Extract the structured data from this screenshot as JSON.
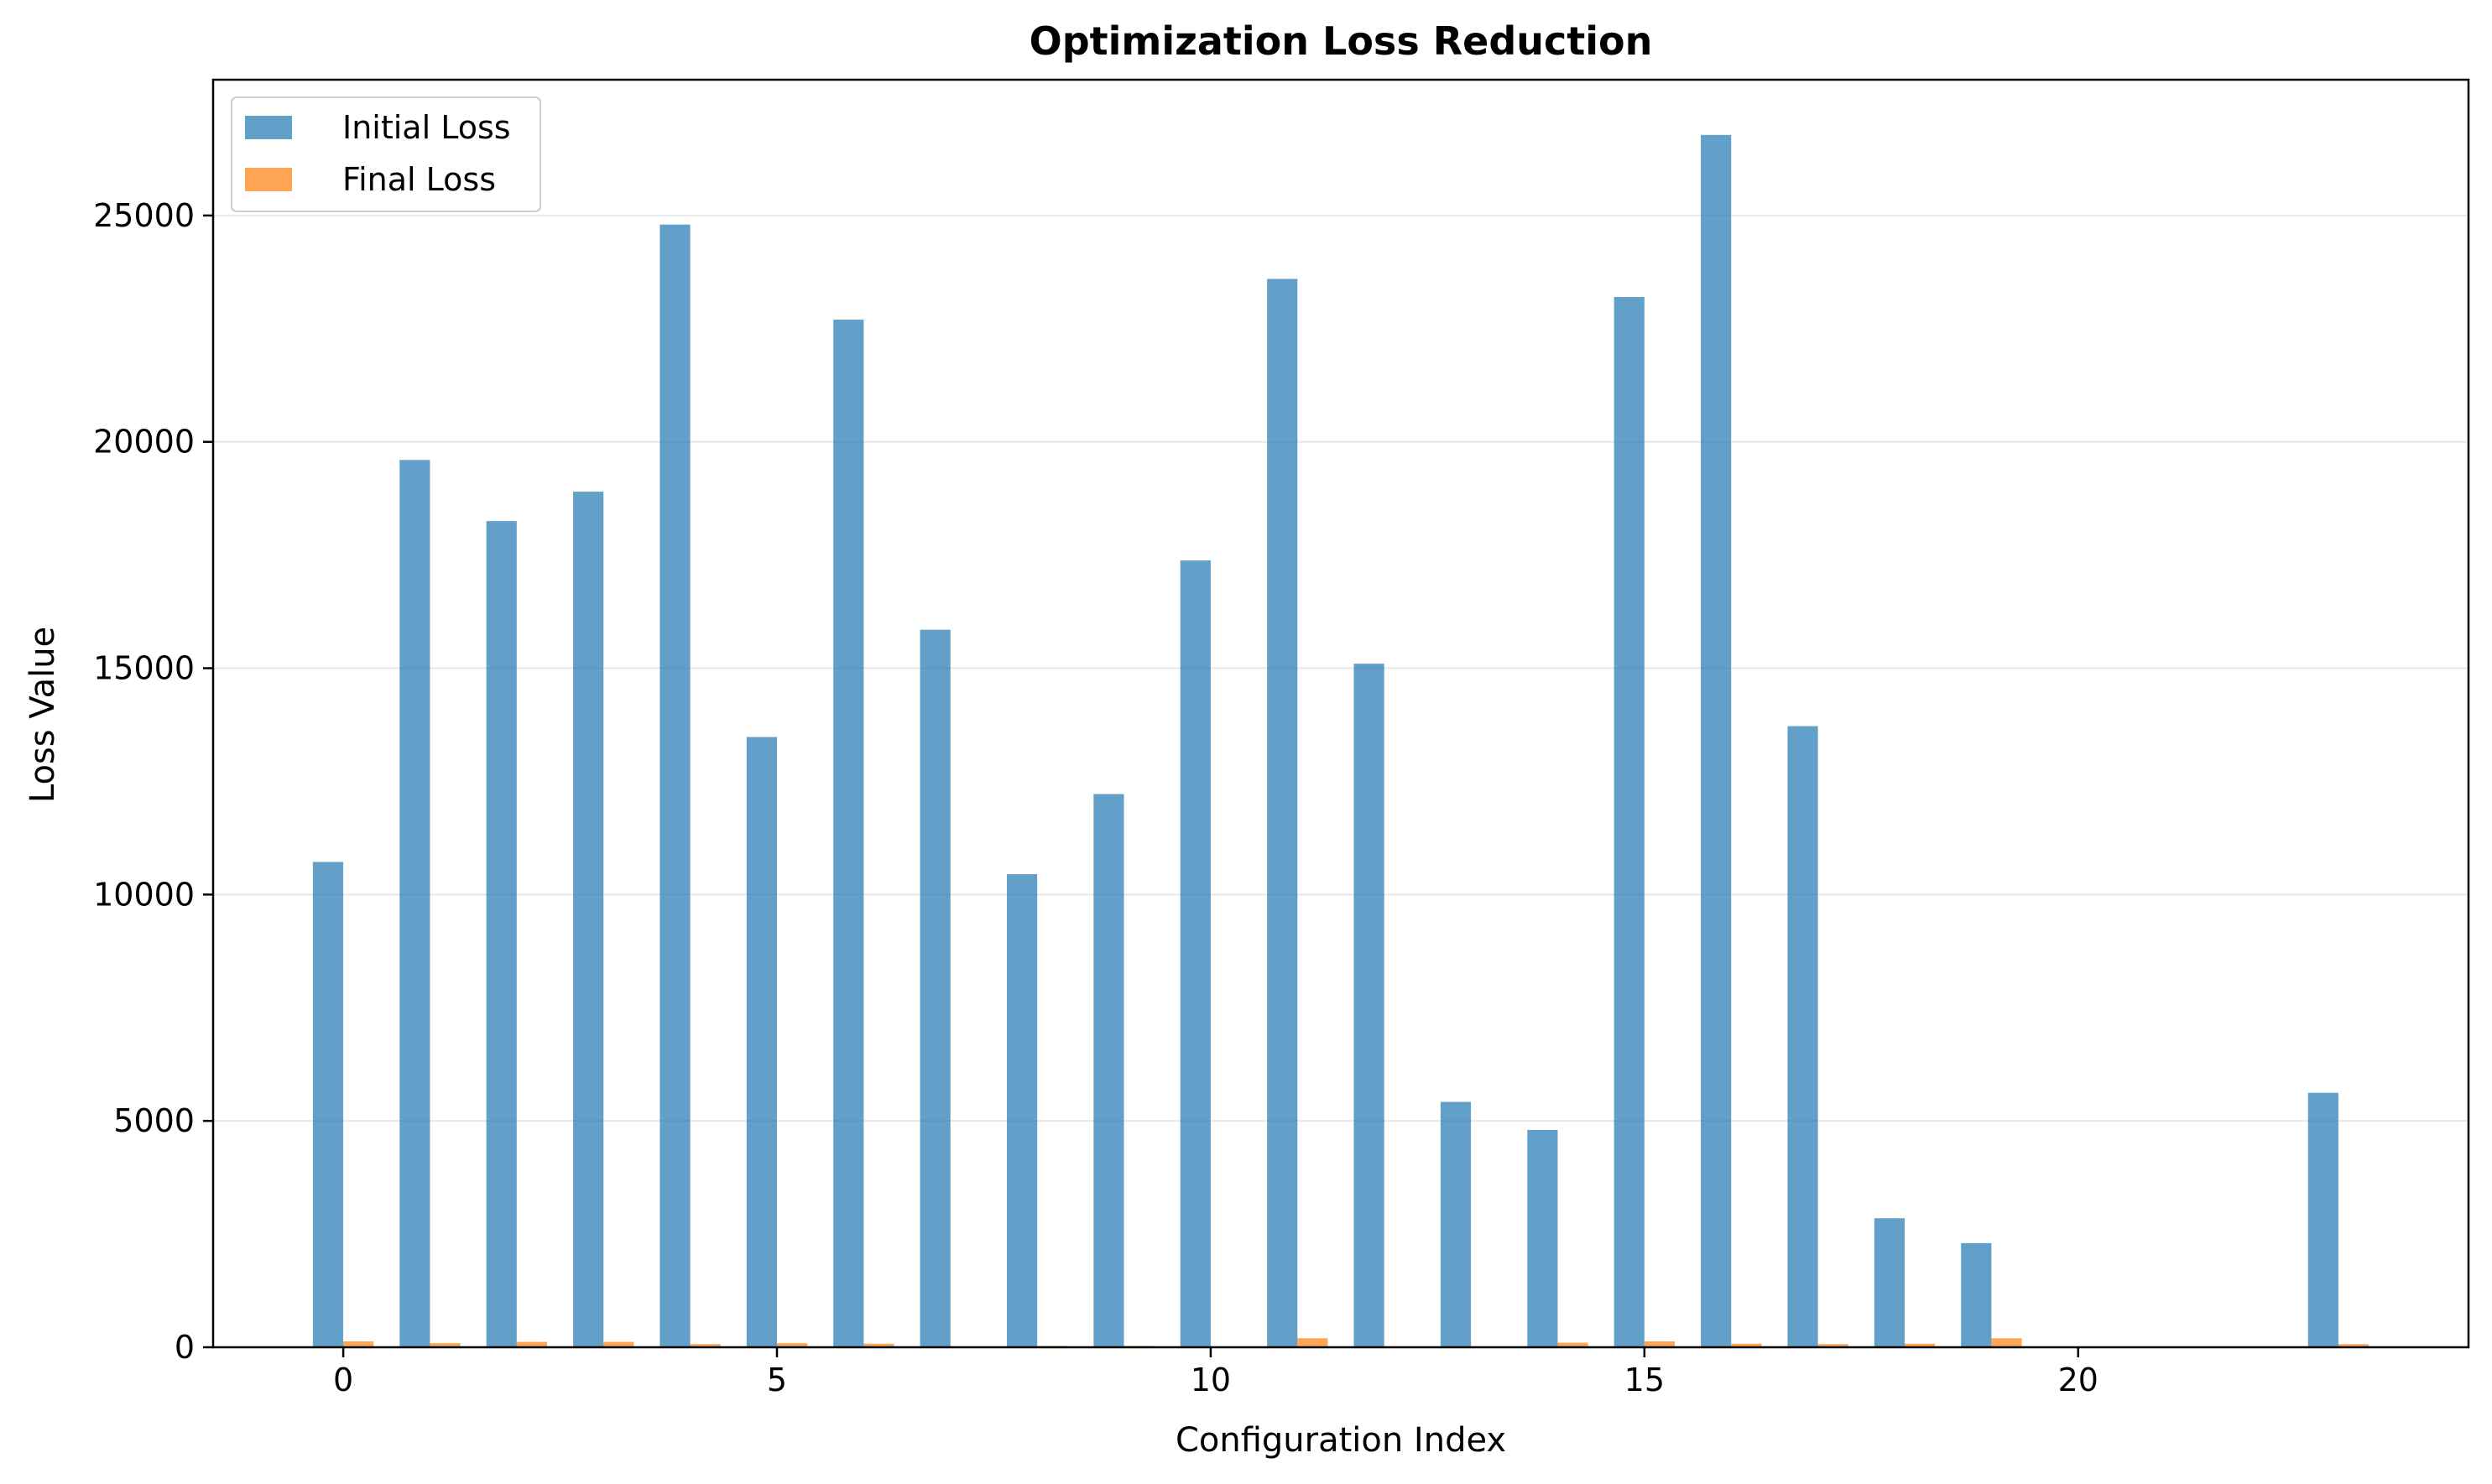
{
  "chart_data": {
    "type": "bar",
    "title": "Optimization Loss Reduction",
    "xlabel": "Configuration Index",
    "ylabel": "Loss Value",
    "x": [
      0,
      1,
      2,
      3,
      4,
      5,
      6,
      7,
      8,
      9,
      10,
      11,
      12,
      13,
      14,
      15,
      16,
      17,
      18,
      19,
      20,
      21,
      22,
      23
    ],
    "series": [
      {
        "name": "Initial Loss",
        "color": "#1f77b4",
        "values": [
          10720,
          19600,
          18250,
          18900,
          24800,
          13480,
          22700,
          15850,
          10450,
          12220,
          17380,
          23600,
          15100,
          5420,
          4800,
          23200,
          26780,
          13720,
          2850,
          2300,
          0,
          0,
          0,
          5620
        ]
      },
      {
        "name": "Final Loss",
        "color": "#ff7f0e",
        "values": [
          130,
          90,
          120,
          120,
          70,
          90,
          80,
          20,
          30,
          30,
          20,
          200,
          20,
          20,
          100,
          130,
          80,
          70,
          80,
          200,
          0,
          0,
          0,
          70
        ]
      }
    ],
    "xlim": [
      -1.5,
      24.5
    ],
    "ylim": [
      0,
      28000
    ],
    "xticks": [
      0,
      5,
      10,
      15,
      20
    ],
    "yticks": [
      0,
      5000,
      10000,
      15000,
      20000,
      25000
    ],
    "grid": "y",
    "legend": "top-left"
  }
}
